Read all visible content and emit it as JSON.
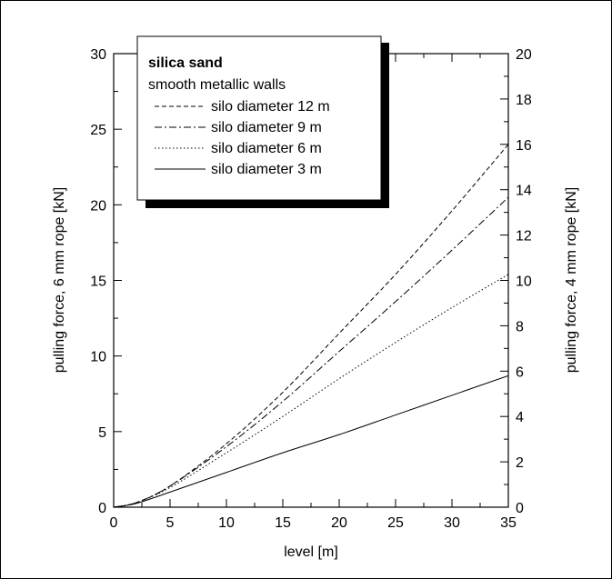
{
  "chart_data": {
    "type": "line",
    "xlabel": "level [m]",
    "ylabel": "pulling force, 6 mm rope [kN]",
    "y2label": "pulling force, 4 mm rope [kN]",
    "xlim": [
      0,
      35
    ],
    "ylim": [
      0,
      30
    ],
    "y2lim": [
      0,
      20
    ],
    "x_ticks": [
      "0",
      "5",
      "10",
      "15",
      "20",
      "25",
      "30",
      "35"
    ],
    "y_ticks": [
      "0",
      "5",
      "10",
      "15",
      "20",
      "25",
      "30"
    ],
    "y2_ticks": [
      "0",
      "2",
      "4",
      "6",
      "8",
      "10",
      "12",
      "14",
      "16",
      "18",
      "20"
    ],
    "grid": false,
    "legend": {
      "placement": "top-left",
      "title": "silica sand",
      "subtitle": "smooth metallic walls"
    },
    "series": [
      {
        "name": "silo diameter 12 m",
        "style": "dashed",
        "x": [
          0,
          2,
          5,
          10,
          15,
          20,
          25,
          30,
          35
        ],
        "y": [
          0,
          0.3,
          1.4,
          4.2,
          7.6,
          11.5,
          15.4,
          19.6,
          24.0
        ]
      },
      {
        "name": "silo diameter 9 m",
        "style": "dash-dot",
        "x": [
          0,
          2,
          5,
          10,
          15,
          20,
          25,
          30,
          35
        ],
        "y": [
          0,
          0.3,
          1.4,
          4.0,
          7.0,
          10.3,
          13.6,
          17.0,
          20.5
        ]
      },
      {
        "name": "silo diameter 6 m",
        "style": "dotted",
        "x": [
          0,
          2,
          5,
          10,
          15,
          20,
          25,
          30,
          35
        ],
        "y": [
          0,
          0.3,
          1.3,
          3.6,
          6.0,
          8.5,
          10.9,
          13.2,
          15.4
        ]
      },
      {
        "name": "silo diameter 3 m",
        "style": "solid",
        "x": [
          0,
          2,
          5,
          10,
          15,
          20,
          25,
          30,
          35
        ],
        "y": [
          0,
          0.25,
          1.0,
          2.3,
          3.6,
          4.8,
          6.1,
          7.4,
          8.7
        ]
      }
    ]
  }
}
